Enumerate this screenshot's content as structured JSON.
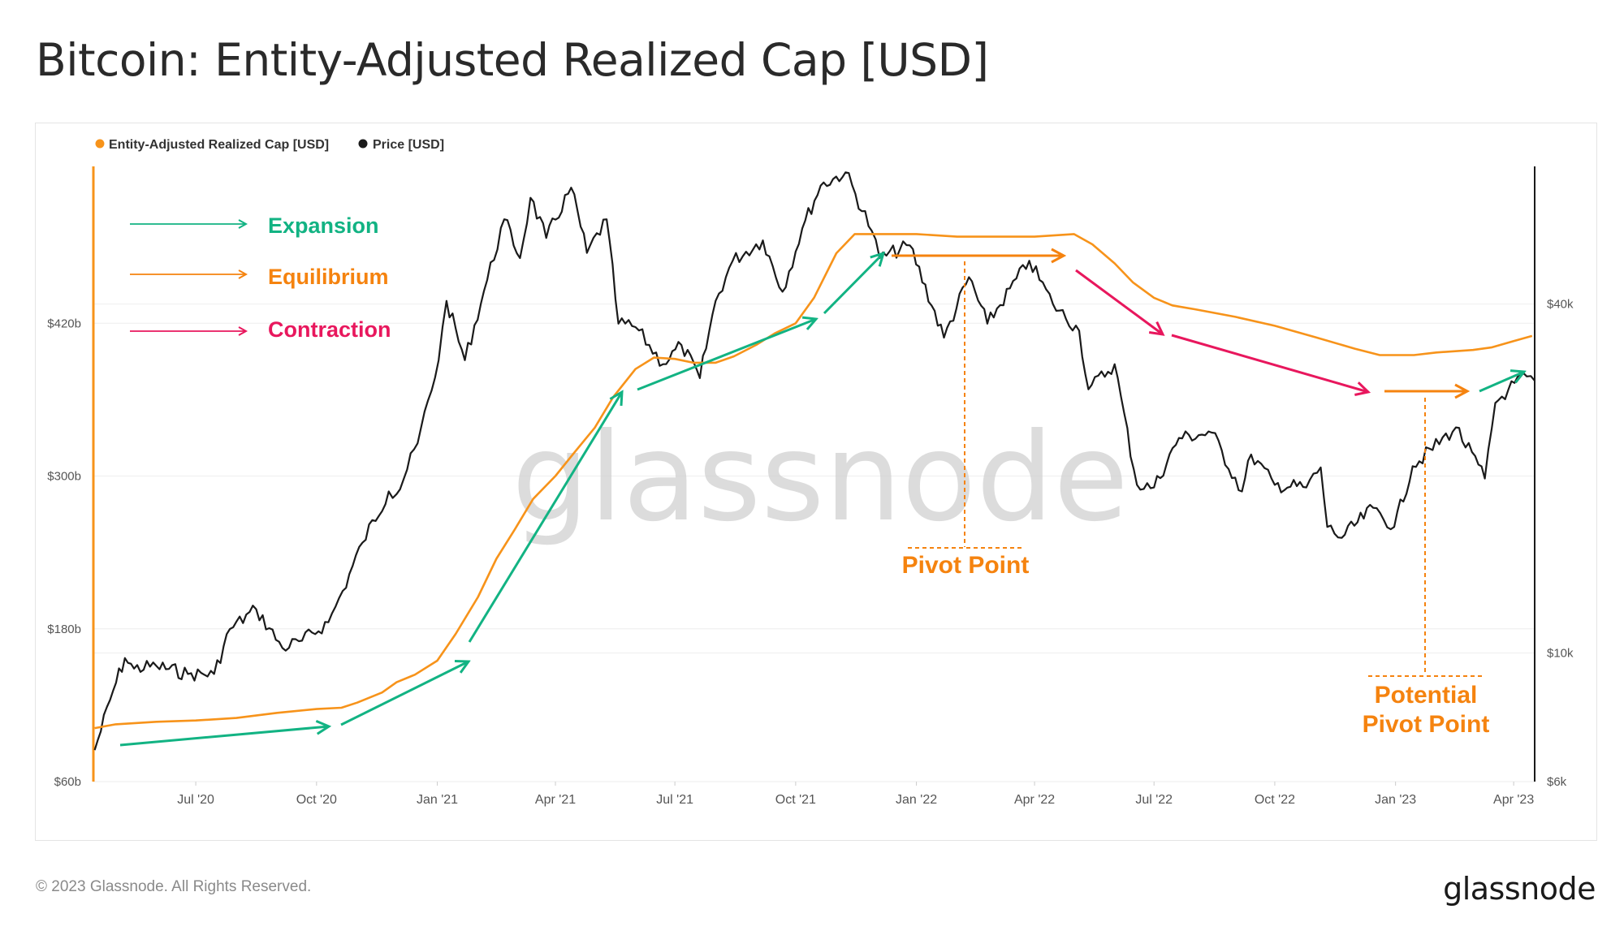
{
  "page": {
    "title": "Bitcoin: Entity-Adjusted Realized Cap [USD]",
    "copyright": "© 2023 Glassnode. All Rights Reserved.",
    "logo_text": "glassnode",
    "watermark_text": "glassnode"
  },
  "colors": {
    "realized_cap": "#f7931a",
    "price": "#1a1a1a",
    "expansion": "#12b383",
    "equilibrium": "#f5830f",
    "contraction": "#e8175d",
    "grid": "#eeeeee",
    "axis_text": "#555555"
  },
  "chart_data": {
    "type": "line",
    "title": "Bitcoin: Entity-Adjusted Realized Cap [USD]",
    "legend_position": "top-left",
    "x_ticks": [
      "Jul '20",
      "Oct '20",
      "Jan '21",
      "Apr '21",
      "Jul '21",
      "Oct '21",
      "Jan '22",
      "Apr '22",
      "Jul '22",
      "Oct '22",
      "Jan '23",
      "Apr '23"
    ],
    "x_range": [
      "2020-04-14",
      "2023-04-17"
    ],
    "y_left": {
      "label": "",
      "ticks": [
        "$60b",
        "$180b",
        "$300b",
        "$420b"
      ],
      "range": [
        60,
        540
      ],
      "unit": "b"
    },
    "y_right": {
      "label": "",
      "ticks": [
        "$6k",
        "$10k",
        "$40k"
      ],
      "scale": "log",
      "range": [
        6,
        68
      ]
    },
    "grid": true,
    "series": [
      {
        "name": "Entity-Adjusted Realized Cap [USD]",
        "axis": "left",
        "x": [
          "2020-04-15",
          "2020-05-01",
          "2020-06-01",
          "2020-07-01",
          "2020-08-01",
          "2020-09-01",
          "2020-10-01",
          "2020-10-20",
          "2020-11-01",
          "2020-11-20",
          "2020-12-01",
          "2020-12-15",
          "2021-01-01",
          "2021-01-15",
          "2021-02-01",
          "2021-02-15",
          "2021-03-01",
          "2021-03-15",
          "2021-04-01",
          "2021-04-15",
          "2021-05-01",
          "2021-05-15",
          "2021-06-01",
          "2021-06-15",
          "2021-07-01",
          "2021-07-15",
          "2021-08-01",
          "2021-08-15",
          "2021-09-01",
          "2021-09-15",
          "2021-10-01",
          "2021-10-15",
          "2021-11-01",
          "2021-11-15",
          "2021-12-01",
          "2021-12-15",
          "2022-01-01",
          "2022-02-01",
          "2022-03-01",
          "2022-04-01",
          "2022-05-01",
          "2022-05-15",
          "2022-06-01",
          "2022-06-15",
          "2022-07-01",
          "2022-07-15",
          "2022-08-01",
          "2022-09-01",
          "2022-10-01",
          "2022-11-01",
          "2022-12-01",
          "2022-12-20",
          "2023-01-15",
          "2023-02-01",
          "2023-03-01",
          "2023-03-15",
          "2023-04-01",
          "2023-04-15"
        ],
        "values": [
          102,
          105,
          107,
          108,
          110,
          114,
          117,
          118,
          122,
          130,
          138,
          144,
          155,
          176,
          205,
          235,
          258,
          282,
          300,
          318,
          338,
          362,
          384,
          393,
          392,
          389,
          389,
          394,
          403,
          412,
          420,
          440,
          475,
          490,
          490,
          490,
          490,
          488,
          488,
          488,
          490,
          482,
          467,
          452,
          440,
          434,
          431,
          425,
          418,
          409,
          400,
          395,
          395,
          397,
          399,
          401,
          406,
          410
        ]
      },
      {
        "name": "Price [USD]",
        "axis": "right",
        "x": [
          "2020-04-15",
          "2020-04-29",
          "2020-05-08",
          "2020-05-15",
          "2020-06-01",
          "2020-06-25",
          "2020-07-15",
          "2020-07-27",
          "2020-08-16",
          "2020-09-05",
          "2020-09-20",
          "2020-10-10",
          "2020-10-21",
          "2020-11-05",
          "2020-11-25",
          "2020-12-01",
          "2020-12-17",
          "2021-01-02",
          "2021-01-08",
          "2021-01-22",
          "2021-02-08",
          "2021-02-21",
          "2021-03-05",
          "2021-03-13",
          "2021-03-25",
          "2021-04-13",
          "2021-04-25",
          "2021-05-10",
          "2021-05-19",
          "2021-06-01",
          "2021-06-22",
          "2021-07-06",
          "2021-07-20",
          "2021-08-01",
          "2021-08-14",
          "2021-09-06",
          "2021-09-21",
          "2021-10-06",
          "2021-10-20",
          "2021-11-08",
          "2021-11-28",
          "2021-12-04",
          "2021-12-27",
          "2022-01-22",
          "2022-02-10",
          "2022-02-24",
          "2022-03-28",
          "2022-04-15",
          "2022-05-05",
          "2022-05-12",
          "2022-06-01",
          "2022-06-18",
          "2022-07-01",
          "2022-07-20",
          "2022-08-14",
          "2022-09-06",
          "2022-09-13",
          "2022-10-01",
          "2022-10-25",
          "2022-11-05",
          "2022-11-10",
          "2022-11-21",
          "2022-12-15",
          "2022-12-31",
          "2023-01-14",
          "2023-02-16",
          "2023-03-10",
          "2023-03-18",
          "2023-03-28",
          "2023-04-11",
          "2023-04-17"
        ],
        "values": [
          6.8,
          8.6,
          9.8,
          9.4,
          9.5,
          9.2,
          9.2,
          11.0,
          11.9,
          10.2,
          10.5,
          11.3,
          12.8,
          15.5,
          19.0,
          18.8,
          23.0,
          32.0,
          40.5,
          32.0,
          44.0,
          56.0,
          48.0,
          61.0,
          52.0,
          63.5,
          49.0,
          56.0,
          37.0,
          36.5,
          31.5,
          34.0,
          29.8,
          40.5,
          47.5,
          51.5,
          42.0,
          54.0,
          64.0,
          67.5,
          53.5,
          48.0,
          50.5,
          35.0,
          44.5,
          37.0,
          47.5,
          40.0,
          36.0,
          28.5,
          31.5,
          19.5,
          19.3,
          23.5,
          24.0,
          19.0,
          22.0,
          19.5,
          19.3,
          20.9,
          16.5,
          15.8,
          17.8,
          16.5,
          21.0,
          24.5,
          20.0,
          27.0,
          28.5,
          30.0,
          29.5
        ]
      }
    ],
    "annotations": {
      "legend_key": [
        "Expansion",
        "Equilibrium",
        "Contraction"
      ],
      "labels": [
        "Pivot Point",
        "Potential",
        "Pivot Point"
      ]
    }
  }
}
